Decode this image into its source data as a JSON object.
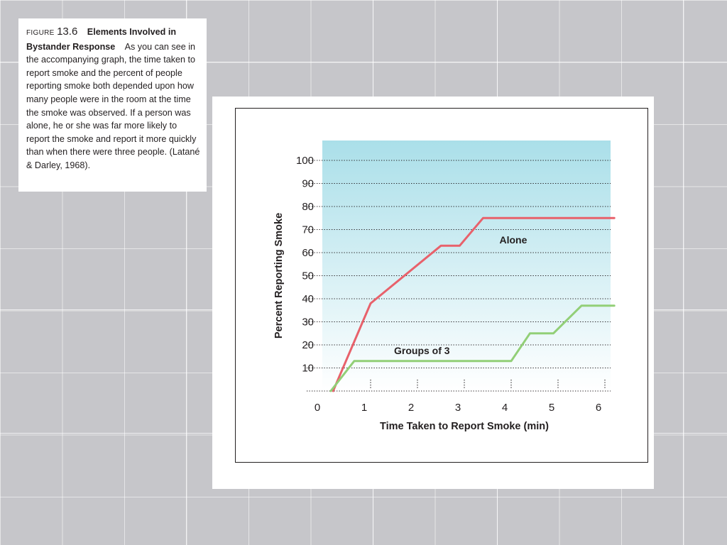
{
  "caption": {
    "figure_word": "FIGURE",
    "figure_number": "13.6",
    "title": "Elements Involved in Bystander Response",
    "body": "As you can see in the accompanying graph, the time taken to report smoke and the percent of people reporting smoke both depended upon how many people were in the room at the time the smoke was observed. If a person was alone, he or she was far more likely to report the smoke and report it more quickly than when there were three people. (Latané & Darley, 1968)."
  },
  "chart_data": {
    "type": "line",
    "xlabel": "Time Taken to Report Smoke (min)",
    "ylabel": "Percent Reporting Smoke",
    "xlim": [
      0,
      6.3
    ],
    "ylim": [
      0,
      100
    ],
    "x_ticks": [
      0,
      1,
      2,
      3,
      4,
      5,
      6
    ],
    "y_ticks": [
      10,
      20,
      30,
      40,
      50,
      60,
      70,
      80,
      90,
      100
    ],
    "grid": "horizontal dotted",
    "background_color": "#cdeef4",
    "series": [
      {
        "name": "Alone",
        "color": "#e8616b",
        "points": [
          [
            0.2,
            0
          ],
          [
            1,
            38
          ],
          [
            2.5,
            63
          ],
          [
            2.9,
            63
          ],
          [
            3.4,
            75
          ],
          [
            6.2,
            75
          ]
        ]
      },
      {
        "name": "Groups of 3",
        "color": "#92cf77",
        "points": [
          [
            0.15,
            0
          ],
          [
            0.65,
            13
          ],
          [
            4.0,
            13
          ],
          [
            4.4,
            25
          ],
          [
            4.9,
            25
          ],
          [
            5.5,
            37
          ],
          [
            6.2,
            37
          ]
        ]
      }
    ]
  }
}
